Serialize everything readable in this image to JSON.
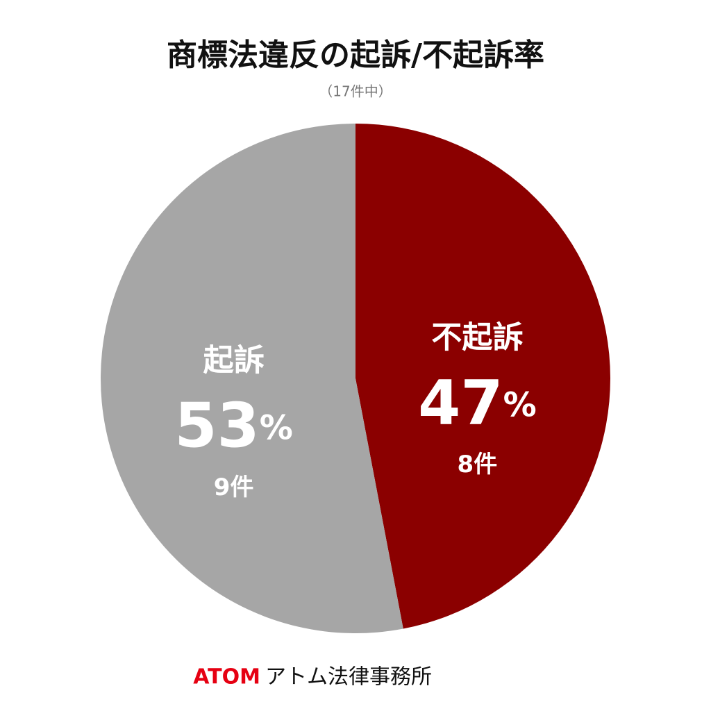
{
  "chart_data": {
    "type": "pie",
    "title": "商標法違反の起訴/不起訴率",
    "subtitle": "（17件中）",
    "categories": [
      "不起訴",
      "起訴"
    ],
    "values": [
      47,
      53
    ],
    "value_labels": [
      "47%",
      "53%"
    ],
    "count_labels": [
      "8件",
      "9件"
    ],
    "colors": [
      "#8b0000",
      "#a6a6a6"
    ],
    "start_angle": 0,
    "direction": "clockwise"
  },
  "footer": {
    "brand": "ATOM",
    "name": "アトム法律事務所"
  }
}
